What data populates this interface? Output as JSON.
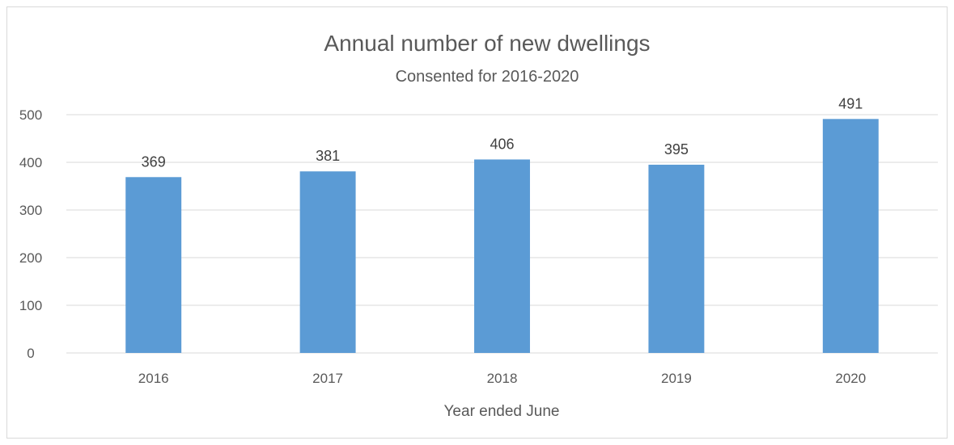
{
  "chart_data": {
    "type": "bar",
    "title": "Annual number of new dwellings",
    "subtitle": "Consented for 2016-2020",
    "xlabel": "Year ended June",
    "ylabel": "",
    "categories": [
      "2016",
      "2017",
      "2018",
      "2019",
      "2020"
    ],
    "values": [
      369,
      381,
      406,
      395,
      491
    ],
    "data_labels": [
      "369",
      "381",
      "406",
      "395",
      "491"
    ],
    "ylim": [
      0,
      500
    ],
    "yticks": [
      0,
      100,
      200,
      300,
      400,
      500
    ],
    "ytick_labels": [
      "0",
      "100",
      "200",
      "300",
      "400",
      "500"
    ],
    "grid": true,
    "legend": "none",
    "bar_color": "#5b9bd5",
    "grid_color": "#d9d9d9",
    "text_color": "#595959"
  }
}
